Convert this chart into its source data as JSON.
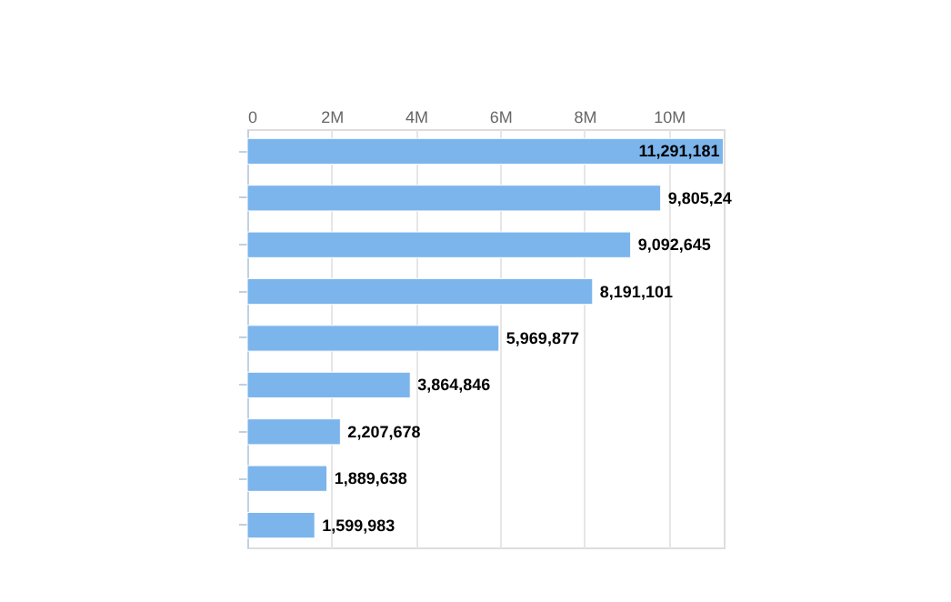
{
  "chart_data": {
    "type": "bar",
    "orientation": "horizontal",
    "categories": [
      null,
      null,
      null,
      null,
      null,
      null,
      null,
      null,
      null
    ],
    "values": [
      11291181,
      9805240,
      9092645,
      8191101,
      5969877,
      3864846,
      2207678,
      1889638,
      1599983
    ],
    "value_labels": [
      "11,291,181",
      "9,805,24",
      "9,092,645",
      "8,191,101",
      "5,969,877",
      "3,864,846",
      "2,207,678",
      "1,889,638",
      "1,599,983"
    ],
    "color": "#7cb5ec",
    "xlim": [
      0,
      11300000
    ],
    "xticks": [
      {
        "value": 0,
        "label": "0"
      },
      {
        "value": 2000000,
        "label": "2M"
      },
      {
        "value": 4000000,
        "label": "4M"
      },
      {
        "value": 6000000,
        "label": "6M"
      },
      {
        "value": 8000000,
        "label": "8M"
      },
      {
        "value": 10000000,
        "label": "10M"
      }
    ],
    "grid": "x",
    "tick_labels": "x"
  }
}
